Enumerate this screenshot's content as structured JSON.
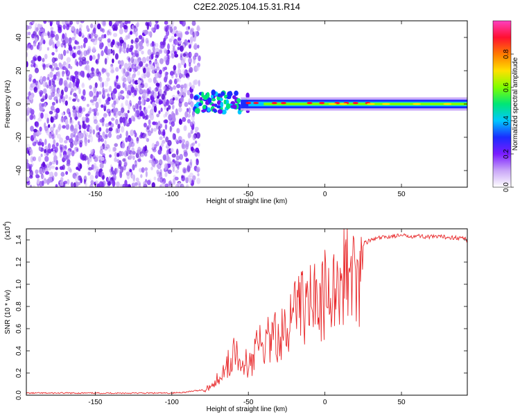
{
  "title": "C2E2.2025.104.15.31.R14",
  "colors": {
    "spectrum_low": "#b98cf5",
    "spectrum_mid": "#6a10f0",
    "line": "#e8282a",
    "frame": "#000000"
  },
  "chart_data": [
    {
      "type": "heatmap",
      "xlabel": "Height of straight line (km)",
      "ylabel": "Frequency (Hz)",
      "xlim": [
        -195,
        93
      ],
      "ylim": [
        -50,
        50
      ],
      "xticks": [
        -150,
        -100,
        -50,
        0,
        50
      ],
      "yticks": [
        -40,
        -20,
        0,
        20,
        40
      ],
      "noise_region_x": [
        -195,
        -82
      ],
      "signal_band_hz": [
        -4,
        4
      ],
      "signal_center_hz": 0,
      "colorbar": {
        "label": "Normalized spectral amplitude",
        "range": [
          0.0,
          1.0
        ],
        "ticks": [
          "0.0",
          "0.2",
          "0.4",
          "0.6",
          "0.8"
        ],
        "stops": [
          "#ffffff",
          "#c9a6f7",
          "#7a1cff",
          "#1a2cff",
          "#00c8ff",
          "#00e676",
          "#7fff00",
          "#ffe000",
          "#ff7a00",
          "#ff1030",
          "#ff40c0"
        ]
      }
    },
    {
      "type": "line",
      "xlabel": "Height of straight line (km)",
      "ylabel": "SNR (10 * v/v)",
      "y_multiplier": "(x10^4)",
      "y_multiplier_base": "(x10",
      "y_multiplier_exp": "4",
      "xlim": [
        -195,
        93
      ],
      "ylim": [
        0.0,
        1.5
      ],
      "xticks": [
        -150,
        -100,
        -50,
        0,
        50
      ],
      "yticks": [
        "0.0",
        "0.2",
        "0.4",
        "0.6",
        "0.8",
        "1.0",
        "1.2",
        "1.4"
      ],
      "series": [
        {
          "color": "#e8282a",
          "x": [
            -195,
            -150,
            -100,
            -90,
            -80,
            -75,
            -70,
            -65,
            -60,
            -58,
            -55,
            -52,
            -50,
            -48,
            -45,
            -42,
            -40,
            -38,
            -35,
            -32,
            -30,
            -28,
            -25,
            -22,
            -20,
            -18,
            -15,
            -12,
            -10,
            -8,
            -5,
            -2,
            0,
            2,
            5,
            8,
            10,
            12,
            15,
            18,
            20,
            22,
            25,
            28,
            30,
            35,
            40,
            45,
            50,
            60,
            70,
            80,
            90,
            93
          ],
          "y": [
            0.02,
            0.02,
            0.02,
            0.03,
            0.05,
            0.09,
            0.18,
            0.3,
            0.42,
            0.5,
            0.45,
            0.38,
            0.28,
            0.36,
            0.48,
            0.55,
            0.58,
            0.6,
            0.65,
            0.62,
            0.66,
            0.7,
            0.78,
            0.82,
            0.85,
            0.9,
            0.95,
            0.98,
            1.0,
            1.02,
            1.05,
            1.08,
            1.1,
            1.12,
            1.18,
            1.22,
            1.25,
            1.28,
            1.3,
            1.32,
            1.34,
            1.35,
            1.37,
            1.39,
            1.4,
            1.42,
            1.43,
            1.44,
            1.44,
            1.44,
            1.43,
            1.43,
            1.42,
            1.4
          ]
        }
      ]
    }
  ]
}
